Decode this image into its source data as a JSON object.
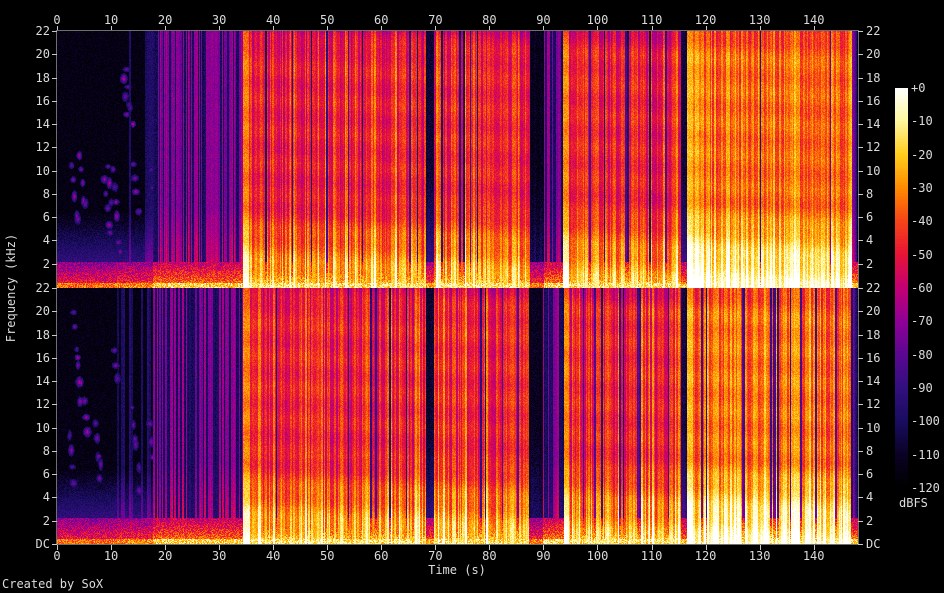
{
  "meta": {
    "creator_credit": "Created by SoX"
  },
  "colors": {
    "background": "#000000",
    "label": "#dcdcdc",
    "tick": "#c8c8c8",
    "plot_border": "#6f6f6f"
  },
  "chart_data": {
    "type": "heatmap",
    "subtype": "spectrogram",
    "title": "",
    "xlabel": "Time (s)",
    "ylabel": "Frequency (kHz)",
    "x_range": [
      0,
      148.2
    ],
    "x_ticks": [
      0,
      10,
      20,
      30,
      40,
      50,
      60,
      70,
      80,
      90,
      100,
      110,
      120,
      130,
      140
    ],
    "y_range_khz": [
      0,
      22
    ],
    "y_ticks": [
      "22",
      "20",
      "18",
      "16",
      "14",
      "12",
      "10",
      "8",
      "6",
      "4",
      "2"
    ],
    "y_dc_label": "DC",
    "channels": 2,
    "grid": false,
    "legend_position": "right-colorbar",
    "colorbar": {
      "label": "dBFS",
      "ticks": [
        "+0",
        "-10",
        "-20",
        "-30",
        "-40",
        "-50",
        "-60",
        "-70",
        "-80",
        "-90",
        "-100",
        "-110",
        "-120"
      ],
      "range_db": [
        0,
        -120
      ],
      "palette_stops": [
        [
          0.0,
          [
            0,
            0,
            0
          ]
        ],
        [
          0.08,
          [
            10,
            2,
            35
          ]
        ],
        [
          0.165,
          [
            25,
            12,
            95
          ]
        ],
        [
          0.25,
          [
            50,
            15,
            125
          ]
        ],
        [
          0.33,
          [
            88,
            8,
            145
          ]
        ],
        [
          0.415,
          [
            142,
            0,
            150
          ]
        ],
        [
          0.5,
          [
            196,
            0,
            115
          ]
        ],
        [
          0.585,
          [
            232,
            20,
            54
          ]
        ],
        [
          0.67,
          [
            246,
            70,
            22
          ]
        ],
        [
          0.75,
          [
            255,
            138,
            0
          ]
        ],
        [
          0.835,
          [
            255,
            205,
            28
          ]
        ],
        [
          0.92,
          [
            255,
            247,
            160
          ]
        ],
        [
          1.0,
          [
            255,
            255,
            255
          ]
        ]
      ]
    },
    "segments": [
      {
        "t0": 0,
        "t1": 11,
        "style": "sparse",
        "level": 0.05,
        "low": 0.72,
        "note": "quiet intro, scattered descending note blobs 4-20 kHz, warm low band"
      },
      {
        "t0": 11,
        "t1": 17.5,
        "style": "sparse",
        "level": 0.05,
        "low": 0.76,
        "faint_stripes": true
      },
      {
        "t0": 17.5,
        "t1": 34.4,
        "style": "stripes",
        "level": 0.3,
        "low": 0.88,
        "note": "purple rhythmic stripes full band"
      },
      {
        "t0": 34.4,
        "t1": 68.2,
        "style": "loud",
        "level": 0.62,
        "low": 1.0,
        "onset": true
      },
      {
        "t0": 68.2,
        "t1": 69.4,
        "style": "gap",
        "level": 0.24,
        "low": 0.8,
        "note": "short break"
      },
      {
        "t0": 69.4,
        "t1": 87.2,
        "style": "loud",
        "level": 0.63,
        "low": 1.0
      },
      {
        "t0": 87.2,
        "t1": 89.8,
        "style": "gap",
        "level": 0.16,
        "low": 0.75,
        "note": "dark quiet bridge"
      },
      {
        "t0": 89.8,
        "t1": 93.6,
        "style": "stripes",
        "level": 0.34,
        "low": 0.9
      },
      {
        "t0": 93.6,
        "t1": 115.4,
        "style": "loud",
        "level": 0.63,
        "low": 1.0,
        "onset": true
      },
      {
        "t0": 115.4,
        "t1": 116.4,
        "style": "gap",
        "level": 0.3,
        "low": 0.85
      },
      {
        "t0": 116.4,
        "t1": 146.9,
        "style": "loud_bright",
        "level": 0.68,
        "low": 1.05,
        "onset": true,
        "note": "brightest finale"
      },
      {
        "t0": 146.9,
        "t1": 148.2,
        "style": "fade",
        "level": 0.45,
        "low": 0.9
      }
    ],
    "intro_blobs": {
      "clusters": 18,
      "t_min": 0.8,
      "t_max": 32,
      "f_top_min": 9,
      "f_top_max": 20,
      "notes_min": 3,
      "notes_max": 7,
      "intensity_min": 0.36,
      "intensity_max": 0.52
    }
  }
}
